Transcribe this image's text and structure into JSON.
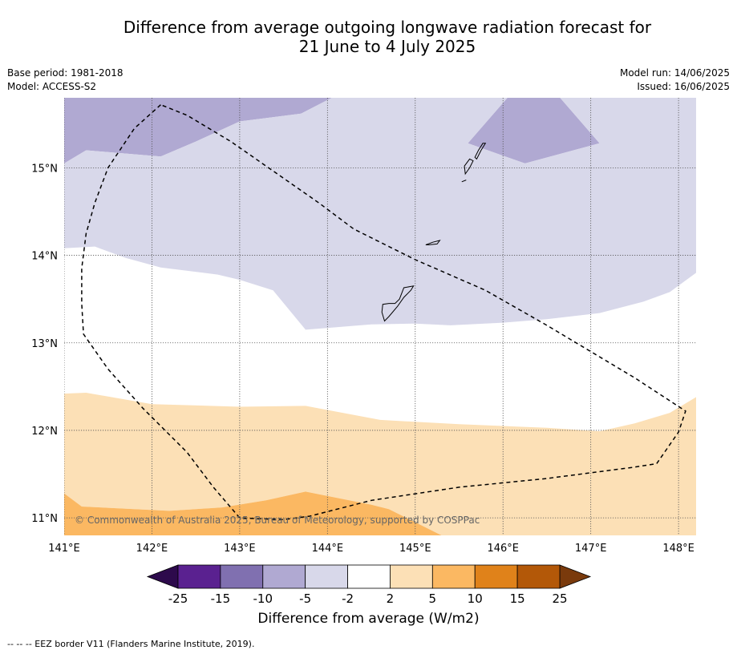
{
  "title": {
    "line1": "Difference from average outgoing longwave radiation forecast for",
    "line2": "21 June to 4 July 2025"
  },
  "meta_left": {
    "base_period": "Base period: 1981-2018",
    "model": "Model: ACCESS-S2"
  },
  "meta_right": {
    "model_run": "Model run: 14/06/2025",
    "issued": "Issued: 16/06/2025"
  },
  "map": {
    "lon_range": [
      141.0,
      148.2
    ],
    "lat_range": [
      10.8,
      15.8
    ],
    "lon_ticks": [
      {
        "value": 141,
        "label": "141°E"
      },
      {
        "value": 142,
        "label": "142°E"
      },
      {
        "value": 143,
        "label": "143°E"
      },
      {
        "value": 144,
        "label": "144°E"
      },
      {
        "value": 145,
        "label": "145°E"
      },
      {
        "value": 146,
        "label": "146°E"
      },
      {
        "value": 147,
        "label": "147°E"
      },
      {
        "value": 148,
        "label": "148°E"
      }
    ],
    "lat_ticks": [
      {
        "value": 11,
        "label": "11°N"
      },
      {
        "value": 12,
        "label": "12°N"
      },
      {
        "value": 13,
        "label": "13°N"
      },
      {
        "value": 14,
        "label": "14°N"
      },
      {
        "value": 15,
        "label": "15°N"
      }
    ],
    "copyright": "© Commonwealth of Australia 2025, Bureau of Meteorology, supported by COSPPac",
    "regions": [
      {
        "name": "-10 to -5",
        "color": "#b0a9d2",
        "points": [
          [
            141.0,
            15.05
          ],
          [
            141.25,
            15.2
          ],
          [
            142.1,
            15.13
          ],
          [
            142.5,
            15.3
          ],
          [
            143.0,
            15.53
          ],
          [
            143.7,
            15.62
          ],
          [
            144.05,
            15.8
          ],
          [
            141.0,
            15.8
          ]
        ]
      },
      {
        "name": "-10 to -5 north-east",
        "color": "#b0a9d2",
        "points": [
          [
            145.6,
            15.28
          ],
          [
            146.25,
            15.05
          ],
          [
            147.1,
            15.28
          ],
          [
            146.65,
            15.8
          ],
          [
            146.05,
            15.8
          ]
        ]
      },
      {
        "name": "-5 to -2",
        "color": "#d8d8ea",
        "points": [
          [
            141.0,
            14.08
          ],
          [
            141.35,
            14.1
          ],
          [
            141.7,
            13.97
          ],
          [
            142.1,
            13.86
          ],
          [
            142.75,
            13.78
          ],
          [
            143.0,
            13.72
          ],
          [
            143.38,
            13.6
          ],
          [
            143.75,
            13.15
          ],
          [
            144.5,
            13.21
          ],
          [
            145.0,
            13.22
          ],
          [
            145.4,
            13.2
          ],
          [
            146.0,
            13.23
          ],
          [
            146.5,
            13.27
          ],
          [
            147.1,
            13.34
          ],
          [
            147.6,
            13.47
          ],
          [
            147.9,
            13.58
          ],
          [
            148.2,
            13.8
          ],
          [
            148.2,
            15.8
          ],
          [
            146.65,
            15.8
          ],
          [
            147.1,
            15.28
          ],
          [
            146.25,
            15.05
          ],
          [
            145.6,
            15.28
          ],
          [
            146.05,
            15.8
          ],
          [
            144.05,
            15.8
          ],
          [
            143.7,
            15.62
          ],
          [
            143.0,
            15.53
          ],
          [
            142.5,
            15.3
          ],
          [
            142.1,
            15.13
          ],
          [
            141.25,
            15.2
          ],
          [
            141.0,
            15.05
          ]
        ]
      },
      {
        "name": "2 to 5",
        "color": "#fce0b6",
        "points": [
          [
            141.0,
            12.42
          ],
          [
            141.25,
            12.43
          ],
          [
            142.0,
            12.3
          ],
          [
            143.0,
            12.27
          ],
          [
            143.75,
            12.28
          ],
          [
            144.6,
            12.12
          ],
          [
            145.5,
            12.07
          ],
          [
            146.5,
            12.03
          ],
          [
            147.1,
            11.99
          ],
          [
            147.5,
            12.08
          ],
          [
            147.9,
            12.2
          ],
          [
            148.2,
            12.38
          ],
          [
            148.2,
            10.8
          ],
          [
            145.3,
            10.8
          ],
          [
            144.7,
            11.1
          ],
          [
            144.5,
            11.15
          ],
          [
            143.75,
            11.3
          ],
          [
            143.3,
            11.2
          ],
          [
            142.8,
            11.12
          ],
          [
            142.2,
            11.08
          ],
          [
            141.2,
            11.13
          ],
          [
            141.0,
            11.28
          ]
        ]
      },
      {
        "name": "5 to 10",
        "color": "#fbb862",
        "points": [
          [
            141.0,
            11.28
          ],
          [
            141.2,
            11.13
          ],
          [
            142.2,
            11.08
          ],
          [
            142.8,
            11.12
          ],
          [
            143.3,
            11.2
          ],
          [
            143.75,
            11.3
          ],
          [
            144.5,
            11.15
          ],
          [
            144.7,
            11.1
          ],
          [
            145.3,
            10.8
          ],
          [
            141.0,
            10.8
          ]
        ]
      }
    ],
    "islands": [
      {
        "name": "Guam",
        "points": [
          [
            144.65,
            13.25
          ],
          [
            144.7,
            13.3
          ],
          [
            144.8,
            13.42
          ],
          [
            144.87,
            13.52
          ],
          [
            144.95,
            13.6
          ],
          [
            144.98,
            13.65
          ],
          [
            144.87,
            13.63
          ],
          [
            144.82,
            13.5
          ],
          [
            144.77,
            13.45
          ],
          [
            144.7,
            13.45
          ],
          [
            144.63,
            13.44
          ],
          [
            144.62,
            13.35
          ]
        ]
      },
      {
        "name": "Rota",
        "points": [
          [
            145.12,
            14.12
          ],
          [
            145.2,
            14.15
          ],
          [
            145.28,
            14.17
          ],
          [
            145.25,
            14.13
          ],
          [
            145.15,
            14.12
          ]
        ]
      },
      {
        "name": "Tinian",
        "points": [
          [
            145.57,
            14.93
          ],
          [
            145.62,
            15.0
          ],
          [
            145.66,
            15.08
          ],
          [
            145.62,
            15.1
          ],
          [
            145.56,
            15.02
          ]
        ]
      },
      {
        "name": "Saipan",
        "points": [
          [
            145.7,
            15.1
          ],
          [
            145.75,
            15.2
          ],
          [
            145.8,
            15.28
          ],
          [
            145.77,
            15.28
          ],
          [
            145.72,
            15.2
          ],
          [
            145.68,
            15.12
          ]
        ]
      },
      {
        "name": "Aguijan",
        "points": [
          [
            145.53,
            14.84
          ],
          [
            145.58,
            14.86
          ]
        ]
      }
    ],
    "eez": [
      [
        142.1,
        15.72
      ],
      [
        141.8,
        15.45
      ],
      [
        141.5,
        15.0
      ],
      [
        141.35,
        14.6
      ],
      [
        141.25,
        14.25
      ],
      [
        141.2,
        13.85
      ],
      [
        141.2,
        13.45
      ],
      [
        141.22,
        13.1
      ],
      [
        141.5,
        12.7
      ],
      [
        141.9,
        12.25
      ],
      [
        142.4,
        11.75
      ],
      [
        142.7,
        11.35
      ],
      [
        143.0,
        11.0
      ],
      [
        143.5,
        10.98
      ],
      [
        143.8,
        11.02
      ],
      [
        144.5,
        11.2
      ],
      [
        145.5,
        11.35
      ],
      [
        146.5,
        11.45
      ],
      [
        147.5,
        11.58
      ],
      [
        147.75,
        11.62
      ],
      [
        148.0,
        11.98
      ],
      [
        148.08,
        12.22
      ],
      [
        147.5,
        12.6
      ],
      [
        146.5,
        13.2
      ],
      [
        145.8,
        13.6
      ],
      [
        145.0,
        13.95
      ],
      [
        144.3,
        14.3
      ],
      [
        143.9,
        14.6
      ],
      [
        143.4,
        14.95
      ],
      [
        142.9,
        15.3
      ],
      [
        142.4,
        15.6
      ],
      [
        142.1,
        15.72
      ]
    ]
  },
  "colorbar": {
    "title": "Difference from average (W/m2)",
    "ticks": [
      "-25",
      "-15",
      "-10",
      "-5",
      "-2",
      "2",
      "5",
      "10",
      "15",
      "25"
    ],
    "under_color": "#2d0a4c",
    "over_color": "#7a3a0c",
    "colors": [
      "#5a2190",
      "#8070b0",
      "#b0a9d2",
      "#d8d8ea",
      "#ffffff",
      "#fce0b6",
      "#fbb862",
      "#e0821a",
      "#b35808"
    ]
  },
  "footnote": "--  --  -- EEZ border V11 (Flanders Marine Institute, 2019)."
}
